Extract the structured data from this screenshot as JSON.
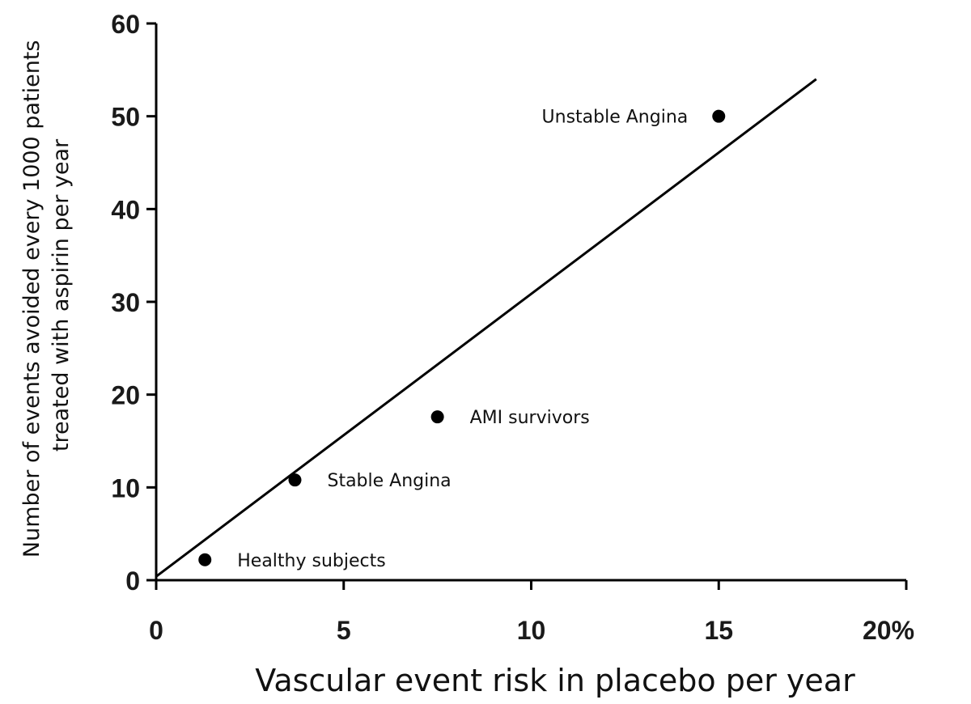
{
  "chart_data": {
    "type": "scatter",
    "title": "",
    "xlabel": "Vascular event risk in placebo per year",
    "ylabel_lines": [
      "Number of events avoided every 1000 patients",
      "treated with aspirin per year"
    ],
    "xlim": [
      0,
      20
    ],
    "ylim": [
      0,
      60
    ],
    "x_ticks": [
      "0",
      "5",
      "10",
      "15",
      "20%"
    ],
    "y_ticks": [
      "0",
      "10",
      "20",
      "30",
      "40",
      "50",
      "60"
    ],
    "x_tick_values": [
      0,
      5,
      10,
      15,
      20
    ],
    "y_tick_values": [
      0,
      10,
      20,
      30,
      40,
      50,
      60
    ],
    "grid": false,
    "points": [
      {
        "label": "Healthy subjects",
        "x": 1.3,
        "y": 2.2
      },
      {
        "label": "Stable Angina",
        "x": 3.7,
        "y": 10.8
      },
      {
        "label": "AMI survivors",
        "x": 7.5,
        "y": 17.6
      },
      {
        "label": "Unstable Angina",
        "x": 15.0,
        "y": 50.0
      }
    ],
    "trend_line": {
      "x": [
        0,
        17.6
      ],
      "y": [
        0.4,
        54.0
      ]
    }
  }
}
